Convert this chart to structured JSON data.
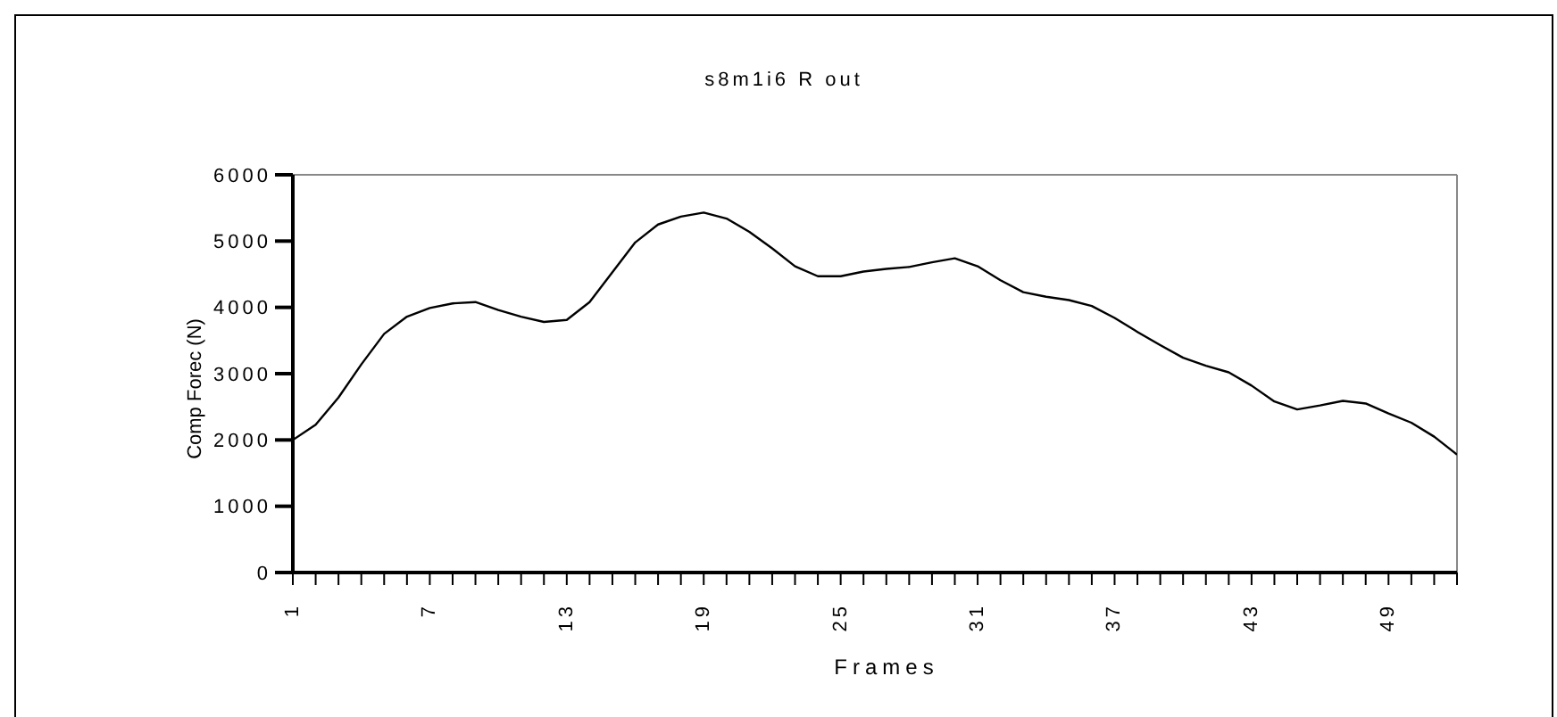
{
  "chart_data": {
    "type": "line",
    "title": "s8m1i6 R out",
    "xlabel": "Frames",
    "ylabel": "Comp Forec (N)",
    "x": [
      1,
      2,
      3,
      4,
      5,
      6,
      7,
      8,
      9,
      10,
      11,
      12,
      13,
      14,
      15,
      16,
      17,
      18,
      19,
      20,
      21,
      22,
      23,
      24,
      25,
      26,
      27,
      28,
      29,
      30,
      31,
      32,
      33,
      34,
      35,
      36,
      37,
      38,
      39,
      40,
      41,
      42,
      43,
      44,
      45,
      46,
      47,
      48,
      49,
      50,
      51,
      52
    ],
    "series": [
      {
        "color": "#000000",
        "values": [
          2000,
          2230,
          2640,
          3140,
          3600,
          3860,
          3990,
          4060,
          4080,
          3960,
          3860,
          3780,
          3810,
          4080,
          4530,
          4980,
          5250,
          5370,
          5430,
          5340,
          5140,
          4890,
          4620,
          4470,
          4470,
          4540,
          4580,
          4610,
          4680,
          4740,
          4620,
          4410,
          4230,
          4160,
          4110,
          4020,
          3840,
          3630,
          3430,
          3240,
          3120,
          3020,
          2820,
          2580,
          2460,
          2520,
          2590,
          2550,
          2400,
          2260,
          2050,
          1780
        ]
      }
    ],
    "xlim": [
      1,
      52
    ],
    "xticks": [
      1,
      {
        "value": 2,
        "label": null
      },
      {
        "value": 3,
        "label": null
      },
      {
        "value": 4,
        "label": null
      },
      {
        "value": 5,
        "label": null
      },
      {
        "value": 6,
        "label": null
      },
      7,
      {
        "value": 8,
        "label": null
      },
      {
        "value": 9,
        "label": null
      },
      {
        "value": 10,
        "label": null
      },
      {
        "value": 11,
        "label": null
      },
      {
        "value": 12,
        "label": null
      },
      13,
      {
        "value": 14,
        "label": null
      },
      {
        "value": 15,
        "label": null
      },
      {
        "value": 16,
        "label": null
      },
      {
        "value": 17,
        "label": null
      },
      {
        "value": 18,
        "label": null
      },
      19,
      {
        "value": 20,
        "label": null
      },
      {
        "value": 21,
        "label": null
      },
      {
        "value": 22,
        "label": null
      },
      {
        "value": 23,
        "label": null
      },
      {
        "value": 24,
        "label": null
      },
      25,
      {
        "value": 26,
        "label": null
      },
      {
        "value": 27,
        "label": null
      },
      {
        "value": 28,
        "label": null
      },
      {
        "value": 29,
        "label": null
      },
      {
        "value": 30,
        "label": null
      },
      31,
      {
        "value": 32,
        "label": null
      },
      {
        "value": 33,
        "label": null
      },
      {
        "value": 34,
        "label": null
      },
      {
        "value": 35,
        "label": null
      },
      {
        "value": 36,
        "label": null
      },
      37,
      {
        "value": 38,
        "label": null
      },
      {
        "value": 39,
        "label": null
      },
      {
        "value": 40,
        "label": null
      },
      {
        "value": 41,
        "label": null
      },
      {
        "value": 42,
        "label": null
      },
      43,
      {
        "value": 44,
        "label": null
      },
      {
        "value": 45,
        "label": null
      },
      {
        "value": 46,
        "label": null
      },
      {
        "value": 47,
        "label": null
      },
      {
        "value": 48,
        "label": null
      },
      49,
      {
        "value": 50,
        "label": null
      },
      {
        "value": 51,
        "label": null
      },
      {
        "value": 52,
        "label": null
      }
    ],
    "ylim": [
      0,
      6000
    ],
    "yticks": [
      0,
      1000,
      2000,
      3000,
      4000,
      5000,
      6000
    ],
    "grid": false,
    "legend": false,
    "marker": "none",
    "line_style": "solid"
  }
}
